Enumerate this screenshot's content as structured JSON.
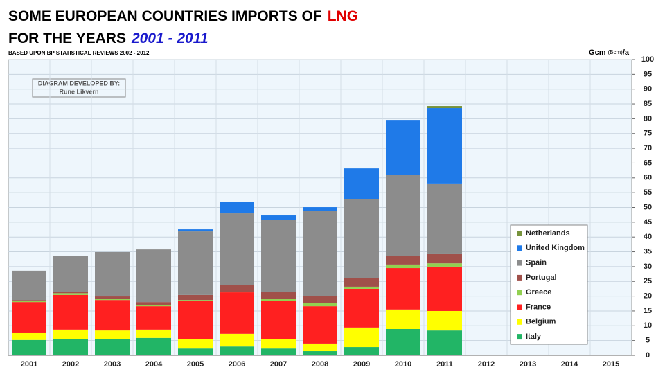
{
  "chart_data": {
    "type": "stacked_bar",
    "title_line1": "SOME EUROPEAN COUNTRIES IMPORTS OF",
    "title_highlight1": "LNG",
    "title_line2": "FOR THE YEARS",
    "title_highlight2": "2001 - 2011",
    "subtitle": "BASED UPON BP STATISTICAL REVIEWS 2002 - 2012",
    "y_label_main": "Gcm",
    "y_label_small": "(Bcm)",
    "y_label_end": "/a",
    "annotation_title": "DIAGRAM DEVELOPED BY:",
    "annotation_author": "Rune Likvern",
    "categories": [
      "2001",
      "2002",
      "2003",
      "2004",
      "2005",
      "2006",
      "2007",
      "2008",
      "2009",
      "2010",
      "2011",
      "2012",
      "2013",
      "2014",
      "2015"
    ],
    "series": [
      {
        "name": "Italy",
        "color": "#22b566",
        "values": [
          5.2,
          5.6,
          5.4,
          5.9,
          2.3,
          3.0,
          2.3,
          1.4,
          2.8,
          8.9,
          8.4,
          null,
          null,
          null,
          null
        ]
      },
      {
        "name": "Belgium",
        "color": "#ffff00",
        "values": [
          2.3,
          3.1,
          3.0,
          2.8,
          3.1,
          4.3,
          3.1,
          2.6,
          6.6,
          6.6,
          6.6,
          null,
          null,
          null,
          null
        ]
      },
      {
        "name": "France",
        "color": "#ff2020",
        "values": [
          10.5,
          11.7,
          10.3,
          7.9,
          12.9,
          14.0,
          13.1,
          12.6,
          13.1,
          14.0,
          15.0,
          null,
          null,
          null,
          null
        ]
      },
      {
        "name": "Greece",
        "color": "#92d050",
        "values": [
          0.5,
          0.6,
          0.5,
          0.5,
          0.4,
          0.2,
          0.5,
          1.0,
          0.7,
          1.2,
          1.1,
          null,
          null,
          null,
          null
        ]
      },
      {
        "name": "Portugal",
        "color": "#a0504a",
        "values": [
          0.2,
          0.5,
          0.7,
          0.9,
          1.7,
          2.2,
          2.5,
          2.5,
          2.8,
          2.8,
          3.1,
          null,
          null,
          null,
          null
        ]
      },
      {
        "name": "Spain",
        "color": "#8c8c8c",
        "values": [
          9.9,
          12.0,
          15.0,
          17.8,
          21.5,
          24.3,
          24.2,
          28.8,
          26.9,
          27.4,
          23.9,
          null,
          null,
          null,
          null
        ]
      },
      {
        "name": "United Kingdom",
        "color": "#1f7ae8",
        "values": [
          0,
          0,
          0,
          0,
          0.7,
          3.8,
          1.6,
          1.2,
          10.3,
          18.7,
          25.5,
          null,
          null,
          null,
          null
        ]
      },
      {
        "name": "Netherlands",
        "color": "#77933c",
        "values": [
          0,
          0,
          0,
          0,
          0,
          0,
          0,
          0,
          0,
          0,
          0.7,
          null,
          null,
          null,
          null
        ]
      }
    ],
    "ylim": [
      0,
      100
    ],
    "yticks": [
      0,
      5,
      10,
      15,
      20,
      25,
      30,
      35,
      40,
      45,
      50,
      55,
      60,
      65,
      70,
      75,
      80,
      85,
      90,
      95,
      100
    ],
    "grid": true,
    "legend": "lower right"
  }
}
